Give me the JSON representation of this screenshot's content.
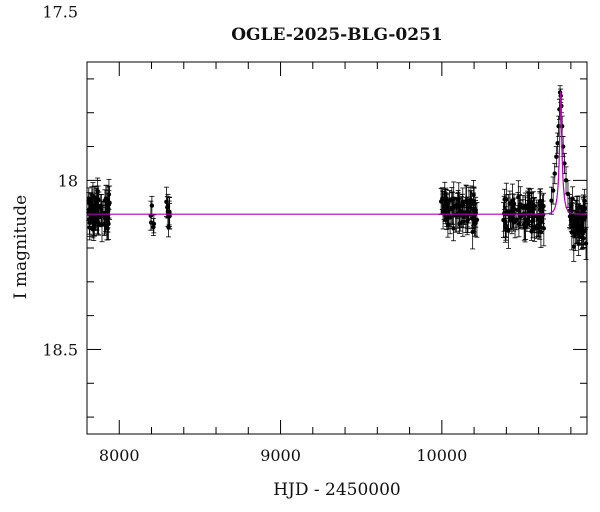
{
  "chart_data": {
    "type": "scatter",
    "title": "OGLE-2025-BLG-0251",
    "xlabel": "HJD - 2450000",
    "ylabel": "I magnitude",
    "xlim": [
      7800,
      10900
    ],
    "ylim": [
      18.75,
      17.65
    ],
    "y_inverted": true,
    "x_ticks": [
      8000,
      9000,
      10000
    ],
    "y_ticks": [
      17.5,
      18,
      18.5
    ],
    "x_tick_labels": [
      "8000",
      "9000",
      "10000"
    ],
    "y_tick_labels": [
      "17.5",
      "18",
      "18.5"
    ],
    "x_minor_step": 200,
    "y_minor_step": 0.1,
    "grid": false,
    "colors": {
      "points": "#000000",
      "model": "#b000b0"
    },
    "observation_seasons": [
      {
        "x_range": [
          7810,
          7940
        ],
        "mag_mean": 18.09,
        "mag_spread": 0.05,
        "error": 0.035,
        "count": 70
      },
      {
        "x_range": [
          8190,
          8215
        ],
        "mag_mean": 18.11,
        "mag_spread": 0.03,
        "error": 0.03,
        "count": 5
      },
      {
        "x_range": [
          8290,
          8315
        ],
        "mag_mean": 18.09,
        "mag_spread": 0.04,
        "error": 0.035,
        "count": 9
      },
      {
        "x_range": [
          9990,
          10220
        ],
        "mag_mean": 18.09,
        "mag_spread": 0.04,
        "error": 0.035,
        "count": 80
      },
      {
        "x_range": [
          10380,
          10640
        ],
        "mag_mean": 18.1,
        "mag_spread": 0.04,
        "error": 0.035,
        "count": 85
      },
      {
        "x_range": [
          10790,
          10895
        ],
        "mag_mean": 18.12,
        "mag_spread": 0.05,
        "error": 0.035,
        "count": 55
      }
    ],
    "event_points": [
      {
        "x": 10680,
        "y": 18.06,
        "err": 0.04
      },
      {
        "x": 10690,
        "y": 18.03,
        "err": 0.04
      },
      {
        "x": 10700,
        "y": 17.98,
        "err": 0.03
      },
      {
        "x": 10710,
        "y": 17.93,
        "err": 0.03
      },
      {
        "x": 10718,
        "y": 17.89,
        "err": 0.03
      },
      {
        "x": 10724,
        "y": 17.84,
        "err": 0.03
      },
      {
        "x": 10729,
        "y": 17.79,
        "err": 0.03
      },
      {
        "x": 10733,
        "y": 17.74,
        "err": 0.02
      },
      {
        "x": 10737,
        "y": 17.75,
        "err": 0.02
      },
      {
        "x": 10741,
        "y": 17.78,
        "err": 0.02
      },
      {
        "x": 10746,
        "y": 17.84,
        "err": 0.03
      },
      {
        "x": 10752,
        "y": 17.9,
        "err": 0.03
      },
      {
        "x": 10760,
        "y": 17.95,
        "err": 0.03
      },
      {
        "x": 10770,
        "y": 18.0,
        "err": 0.04
      },
      {
        "x": 10782,
        "y": 18.04,
        "err": 0.04
      }
    ],
    "model": {
      "type": "microlensing_paczynski",
      "t0": 10737,
      "tE": 22,
      "u0": 0.13,
      "baseline_mag": 18.1,
      "peak_mag": 17.72
    }
  }
}
